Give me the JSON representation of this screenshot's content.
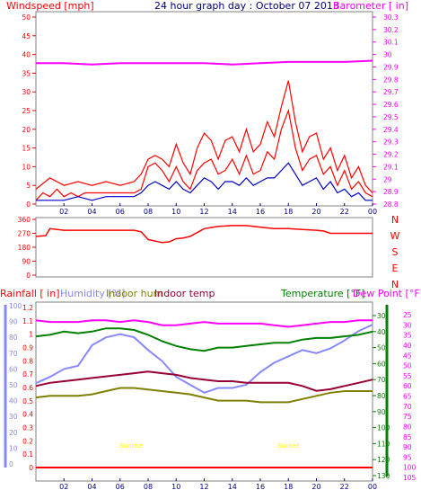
{
  "chart_data": [
    {
      "type": "line",
      "title": "24 hour graph day : October 07 2013",
      "left_axis": {
        "label": "Windspeed [mph]",
        "range": [
          0,
          50
        ],
        "ticks": [
          0,
          5,
          10,
          15,
          20,
          25,
          30,
          35,
          40,
          45,
          50
        ]
      },
      "right_axis": {
        "label": "Barometer [ in]",
        "range": [
          28.8,
          30.3
        ],
        "ticks": [
          "28.8",
          "28.9",
          "29",
          "29.1",
          "29.2",
          "29.3",
          "29.4",
          "29.5",
          "29.6",
          "29.7",
          "29.8",
          "29.9",
          "30",
          "30.1",
          "30.2",
          "30.3"
        ]
      },
      "x_ticks": [
        "02",
        "04",
        "06",
        "08",
        "10",
        "12",
        "14",
        "16",
        "18",
        "20",
        "22",
        "00"
      ],
      "series": [
        {
          "name": "Windspeed",
          "axis": "left",
          "color": "#ff0000",
          "x": [
            0,
            0.5,
            1,
            1.5,
            2,
            2.5,
            3,
            3.5,
            4,
            4.5,
            5,
            5.5,
            6,
            6.5,
            7,
            7.5,
            8,
            8.5,
            9,
            9.5,
            10,
            10.5,
            11,
            11.5,
            12,
            12.5,
            13,
            13.5,
            14,
            14.5,
            15,
            15.5,
            16,
            16.5,
            17,
            17.5,
            18,
            18.5,
            19,
            19.5,
            20,
            20.5,
            21,
            21.5,
            22,
            22.5,
            23,
            23.5,
            24
          ],
          "y": [
            1,
            3,
            2,
            4,
            2,
            3,
            2,
            3,
            3,
            3,
            3,
            3,
            3,
            3,
            3,
            4,
            10,
            11,
            9,
            6,
            10,
            6,
            4,
            9,
            11,
            12,
            8,
            9,
            12,
            8,
            13,
            8,
            9,
            14,
            12,
            20,
            25,
            15,
            9,
            12,
            13,
            8,
            10,
            5,
            9,
            4,
            6,
            3,
            2
          ]
        },
        {
          "name": "Wind gust",
          "axis": "left",
          "color": "#ff0000",
          "x": [
            0,
            1,
            2,
            3,
            4,
            5,
            6,
            7,
            7.5,
            8,
            8.5,
            9,
            9.5,
            10,
            10.5,
            11,
            11.5,
            12,
            12.5,
            13,
            13.5,
            14,
            14.5,
            15,
            15.5,
            16,
            16.5,
            17,
            17.5,
            18,
            18.5,
            19,
            19.5,
            20,
            20.5,
            21,
            21.5,
            22,
            22.5,
            23,
            23.5,
            24
          ],
          "y": [
            4,
            7,
            5,
            6,
            5,
            6,
            5,
            6,
            8,
            12,
            13,
            12,
            10,
            16,
            11,
            8,
            15,
            19,
            17,
            12,
            17,
            18,
            14,
            20,
            14,
            16,
            22,
            18,
            26,
            33,
            22,
            14,
            18,
            19,
            12,
            15,
            9,
            13,
            7,
            10,
            5,
            3
          ]
        },
        {
          "name": "Average wind",
          "axis": "left",
          "color": "#0000cc",
          "x": [
            0,
            1,
            2,
            3,
            4,
            5,
            6,
            7,
            7.5,
            8,
            8.5,
            9,
            9.5,
            10,
            10.5,
            11,
            11.5,
            12,
            12.5,
            13,
            13.5,
            14,
            14.5,
            15,
            15.5,
            16,
            16.5,
            17,
            17.5,
            18,
            18.5,
            19,
            19.5,
            20,
            20.5,
            21,
            21.5,
            22,
            22.5,
            23,
            23.5,
            24
          ],
          "y": [
            1,
            1,
            1,
            2,
            1,
            2,
            2,
            2,
            3,
            5,
            6,
            5,
            4,
            6,
            4,
            3,
            5,
            7,
            6,
            4,
            6,
            6,
            5,
            7,
            5,
            6,
            7,
            7,
            9,
            11,
            8,
            5,
            6,
            7,
            4,
            6,
            3,
            4,
            2,
            3,
            1,
            1
          ]
        },
        {
          "name": "Barometer",
          "axis": "right",
          "color": "#ff00ff",
          "x": [
            0,
            2,
            4,
            6,
            8,
            10,
            12,
            14,
            16,
            18,
            20,
            22,
            24
          ],
          "y": [
            29.93,
            29.93,
            29.92,
            29.93,
            29.93,
            29.93,
            29.93,
            29.92,
            29.93,
            29.94,
            29.94,
            29.94,
            29.95
          ]
        }
      ]
    },
    {
      "type": "line",
      "left_axis": {
        "ticks": [
          "0",
          "90",
          "180",
          "270",
          "360"
        ],
        "range": [
          0,
          360
        ]
      },
      "right_labels": [
        "N",
        "W",
        "S",
        "E",
        "N"
      ],
      "series": [
        {
          "name": "Wind direction",
          "color": "#ff0000",
          "x": [
            0,
            0.7,
            1,
            2,
            3,
            4,
            5,
            6,
            7,
            7.5,
            8,
            9,
            9.5,
            10,
            10.5,
            11,
            12,
            13,
            14,
            15,
            16,
            17,
            18,
            19,
            20,
            20.5,
            21,
            22,
            23,
            24
          ],
          "y": [
            250,
            255,
            300,
            290,
            290,
            290,
            290,
            290,
            290,
            280,
            230,
            210,
            215,
            235,
            240,
            250,
            300,
            315,
            320,
            320,
            310,
            300,
            300,
            295,
            290,
            285,
            270,
            270,
            270,
            270
          ]
        }
      ]
    },
    {
      "type": "line",
      "labels": {
        "rainfall": "Rainfall [ in]",
        "humidity": "Humidity [%]",
        "indoor_hum": "Indoor hum",
        "indoor_temp": "Indoor temp",
        "temperature": "Temperature [°F]",
        "dew_point": "Dew Point [°F]"
      },
      "rain_ticks": [
        "0",
        "0.1",
        "0.2",
        "0.3",
        "0.4",
        "0.5",
        "0.6",
        "0.7",
        "0.8",
        "0.9",
        "1",
        "1.1",
        "1.2"
      ],
      "hum_ticks": [
        "0",
        "10",
        "20",
        "30",
        "40",
        "50",
        "60",
        "70",
        "80",
        "90",
        "100"
      ],
      "temp_ticks": [
        "30",
        "40",
        "50",
        "60",
        "70",
        "80",
        "90",
        "100",
        "110",
        "120",
        "130"
      ],
      "dew_ticks": [
        "25",
        "30",
        "35",
        "40",
        "45",
        "50",
        "55",
        "60",
        "65",
        "70",
        "75",
        "80",
        "85",
        "90",
        "95",
        "100",
        "105"
      ],
      "annotations": [
        "Sunrise",
        "Sunset"
      ],
      "series": [
        {
          "name": "Humidity",
          "color": "#8888ff",
          "unit": "%",
          "x": [
            0,
            1,
            2,
            3,
            4,
            5,
            6,
            7,
            8,
            9,
            10,
            11,
            12,
            13,
            14,
            15,
            16,
            17,
            18,
            19,
            20,
            21,
            22,
            23,
            24
          ],
          "y": [
            51,
            55,
            60,
            62,
            75,
            80,
            82,
            80,
            72,
            65,
            55,
            50,
            45,
            48,
            48,
            50,
            58,
            64,
            68,
            72,
            70,
            73,
            78,
            84,
            88
          ]
        },
        {
          "name": "Indoor hum",
          "color": "#808000",
          "unit": "%",
          "x": [
            0,
            1,
            2,
            3,
            4,
            5,
            6,
            7,
            8,
            9,
            10,
            11,
            12,
            13,
            14,
            15,
            16,
            17,
            18,
            19,
            20,
            21,
            22,
            23,
            24
          ],
          "y": [
            42,
            43,
            43,
            43,
            44,
            46,
            48,
            48,
            47,
            46,
            45,
            44,
            42,
            40,
            40,
            40,
            39,
            39,
            39,
            41,
            43,
            45,
            46,
            46,
            46
          ]
        },
        {
          "name": "Indoor temp",
          "color": "#990033",
          "unit": "°F",
          "x": [
            0,
            1,
            2,
            3,
            4,
            5,
            6,
            7,
            8,
            9,
            10,
            11,
            12,
            13,
            14,
            15,
            16,
            17,
            18,
            19,
            20,
            21,
            22,
            23,
            24
          ],
          "y": [
            74,
            72,
            71,
            70,
            69,
            68,
            67,
            66,
            65,
            66,
            67,
            69,
            70,
            71,
            71,
            72,
            72,
            72,
            72,
            74,
            77,
            76,
            74,
            72,
            70
          ]
        },
        {
          "name": "Temperature",
          "color": "#008000",
          "unit": "°F",
          "x": [
            0,
            1,
            2,
            3,
            4,
            5,
            6,
            7,
            8,
            9,
            10,
            11,
            12,
            13,
            14,
            15,
            16,
            17,
            18,
            19,
            20,
            21,
            22,
            23,
            24
          ],
          "y": [
            43,
            42,
            40,
            41,
            40,
            38,
            38,
            39,
            42,
            46,
            49,
            51,
            52,
            50,
            50,
            49,
            48,
            47,
            47,
            45,
            44,
            44,
            43,
            42,
            40
          ]
        },
        {
          "name": "Dew Point",
          "color": "#ff00ff",
          "unit": "°F",
          "x": [
            0,
            1,
            2,
            3,
            4,
            5,
            6,
            7,
            8,
            9,
            10,
            11,
            12,
            13,
            14,
            15,
            16,
            17,
            18,
            19,
            20,
            21,
            22,
            23,
            24
          ],
          "y": [
            33,
            34,
            34,
            34,
            33,
            33,
            34,
            33,
            34,
            36,
            36,
            35,
            34,
            35,
            35,
            35,
            35,
            36,
            37,
            36,
            35,
            34,
            34,
            33,
            33
          ]
        },
        {
          "name": "Rainfall",
          "color": "#ff0000",
          "unit": "in",
          "x": [
            0,
            24
          ],
          "y": [
            0,
            0
          ]
        }
      ]
    }
  ],
  "x_ticks": [
    "02",
    "04",
    "06",
    "08",
    "10",
    "12",
    "14",
    "16",
    "18",
    "20",
    "22",
    "00"
  ],
  "direction_ticks": [
    "360",
    "270",
    "180",
    "90",
    "0"
  ],
  "compass": [
    "N",
    "W",
    "S",
    "E",
    "N"
  ]
}
